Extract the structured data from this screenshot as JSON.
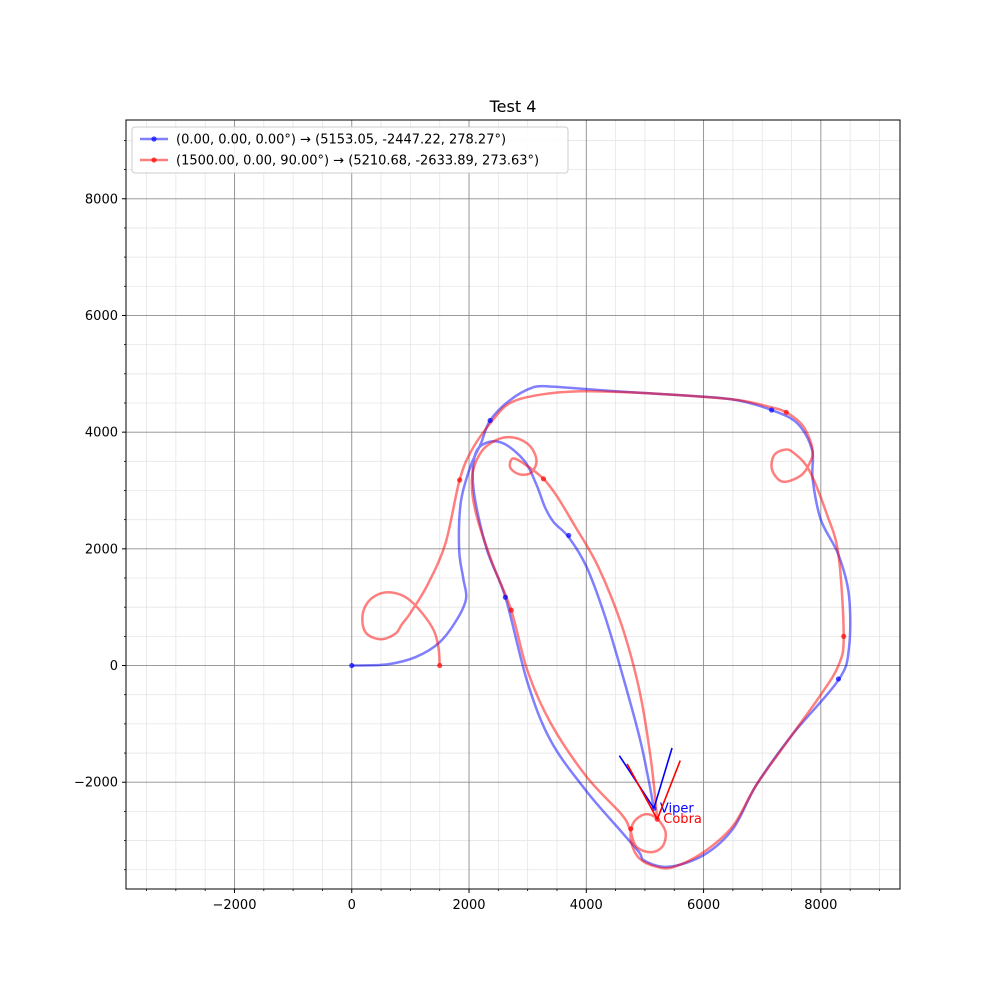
{
  "chart_data": {
    "type": "line",
    "title": "Test 4",
    "xlabel": "",
    "ylabel": "",
    "xlim": [
      -3850,
      9350
    ],
    "ylim": [
      -3830,
      9350
    ],
    "xticks": [
      -2000,
      0,
      2000,
      4000,
      6000,
      8000
    ],
    "yticks": [
      -2000,
      0,
      2000,
      4000,
      6000,
      8000
    ],
    "xtick_labels": [
      "−2000",
      "0",
      "2000",
      "4000",
      "6000",
      "8000"
    ],
    "ytick_labels": [
      "−2000",
      "0",
      "2000",
      "4000",
      "6000",
      "8000"
    ],
    "grid": true,
    "minor_grid": true,
    "legend_position": "upper-left",
    "series": [
      {
        "name": "(0.00, 0.00, 0.00°) → (5153.05, -2447.22, 278.27°)",
        "color": "#0000ff",
        "x": [
          0,
          600,
          1100,
          1500,
          1800,
          1950,
          1900,
          1830,
          1860,
          2020,
          2200,
          2360,
          2700,
          3100,
          3400,
          3700,
          4500,
          5500,
          6500,
          7160,
          7600,
          7850,
          7860,
          8000,
          8300,
          8480,
          8480,
          8300,
          7500,
          6900,
          6500,
          6000,
          5400,
          5000,
          4900,
          4600,
          4000,
          3400,
          3000,
          2620,
          2300,
          2080,
          2100,
          2300,
          2600,
          2950,
          3150,
          3300,
          3450,
          3700,
          4000,
          4300,
          4600,
          4900,
          5050,
          5153
        ],
        "y": [
          0,
          20,
          150,
          400,
          800,
          1150,
          1500,
          2000,
          2800,
          3400,
          3800,
          4200,
          4550,
          4770,
          4780,
          4760,
          4700,
          4640,
          4560,
          4380,
          4150,
          3700,
          3200,
          2500,
          1900,
          1200,
          300,
          -250,
          -1200,
          -2050,
          -2800,
          -3250,
          -3450,
          -3350,
          -3200,
          -2850,
          -2150,
          -1300,
          -300,
          1170,
          2000,
          3000,
          3600,
          3820,
          3800,
          3500,
          3100,
          2700,
          2450,
          2200,
          1700,
          900,
          -100,
          -1200,
          -1900,
          -2447
        ]
      },
      {
        "name": "(1500.00, 0.00, 90.00°) → (5210.68, -2633.89, 273.63°)",
        "color": "#ff0000",
        "x": [
          1500,
          1480,
          1400,
          1200,
          950,
          700,
          450,
          250,
          180,
          250,
          500,
          750,
          850,
          1000,
          1300,
          1600,
          1840,
          2050,
          2400,
          2700,
          3200,
          3900,
          4800,
          5800,
          6600,
          7140,
          7410,
          7700,
          7860,
          7800,
          7650,
          7350,
          7170,
          7200,
          7380,
          7530,
          7800,
          8100,
          8300,
          8390,
          8300,
          8000,
          7500,
          6900,
          6500,
          6000,
          5500,
          5200,
          4900,
          4760,
          4800,
          5000,
          5200,
          5350,
          5300,
          5100,
          4850,
          4740,
          4600,
          4000,
          3400,
          3000,
          2720,
          2400,
          2120,
          2050,
          2200,
          2500,
          2800,
          3050,
          3150,
          3050,
          2850,
          2700,
          2750,
          2950,
          3270,
          3500,
          3800,
          4200,
          4600,
          4900,
          5100,
          5210
        ],
        "y": [
          0,
          300,
          600,
          900,
          1150,
          1250,
          1220,
          1050,
          800,
          550,
          450,
          550,
          700,
          900,
          1400,
          2100,
          3180,
          3700,
          4200,
          4500,
          4640,
          4700,
          4680,
          4620,
          4550,
          4430,
          4340,
          4100,
          3700,
          3450,
          3250,
          3150,
          3350,
          3600,
          3700,
          3650,
          3350,
          2600,
          1900,
          500,
          0,
          -500,
          -1200,
          -2050,
          -2750,
          -3200,
          -3450,
          -3450,
          -3300,
          -3000,
          -2700,
          -2550,
          -2620,
          -2850,
          -3100,
          -3200,
          -3100,
          -2800,
          -2550,
          -1900,
          -1000,
          -100,
          950,
          1750,
          2600,
          3200,
          3650,
          3880,
          3900,
          3750,
          3500,
          3300,
          3280,
          3400,
          3550,
          3450,
          3200,
          2900,
          2400,
          1700,
          700,
          -400,
          -1600,
          -2634
        ]
      }
    ],
    "markers": [
      {
        "series": 0,
        "x": [
          0,
          2360,
          3700,
          7160,
          8300,
          2620,
          5153
        ],
        "y": [
          0,
          4200,
          2230,
          4380,
          -230,
          1170,
          -2447
        ]
      },
      {
        "series": 1,
        "x": [
          1500,
          1840,
          3270,
          7410,
          8390,
          2720,
          4760,
          5210
        ],
        "y": [
          0,
          3180,
          3200,
          4340,
          500,
          950,
          -2800,
          -2634
        ]
      }
    ],
    "annotations": [
      {
        "text": "Viper",
        "x": 5153.05,
        "y": -2447.22,
        "color": "#0000ff",
        "heading_deg": 278.27
      },
      {
        "text": "Cobra",
        "x": 5210.68,
        "y": -2633.89,
        "color": "#ff0000",
        "heading_deg": 273.63
      }
    ]
  }
}
